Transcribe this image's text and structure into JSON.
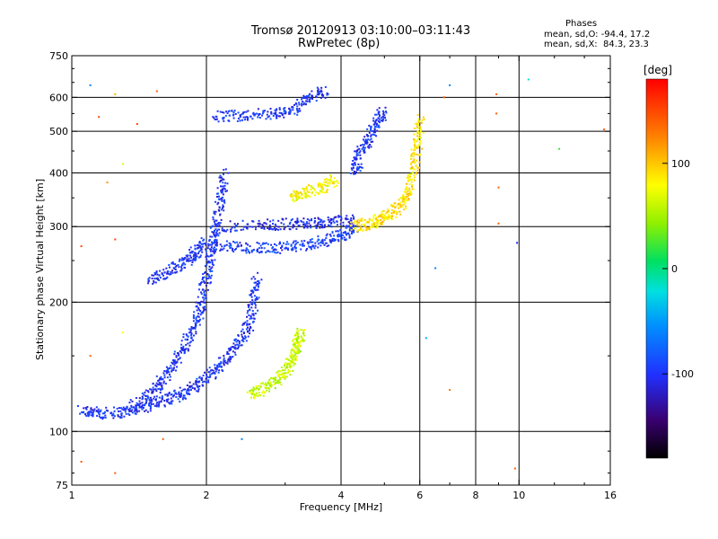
{
  "header": {
    "title_line1": "Tromsø 20120913 03:10:00–03:11:43",
    "title_line2": "RwPretec (8p)",
    "phases_title": "Phases",
    "phases_line1": "mean, sd,O: -94.4, 17.2",
    "phases_line2": "mean, sd,X:  84.3, 23.3"
  },
  "chart_data": {
    "type": "scatter",
    "xlabel": "Frequency [MHz]",
    "ylabel": "Stationary phase Virtual Height [km]",
    "x_scale": "log",
    "y_scale": "log",
    "xlim": [
      1,
      16
    ],
    "ylim": [
      75,
      750
    ],
    "x_ticks": [
      1,
      2,
      4,
      6,
      8,
      10,
      16
    ],
    "x_tick_labels": [
      "1",
      "2",
      "4",
      "6",
      "8",
      "10",
      "16"
    ],
    "y_ticks": [
      75,
      100,
      200,
      300,
      400,
      500,
      600,
      750
    ],
    "y_tick_labels": [
      "75",
      "100",
      "200",
      "300",
      "400",
      "500",
      "600",
      "750"
    ],
    "x_grid": [
      2,
      4,
      6,
      8,
      10
    ],
    "y_grid": [
      100,
      200,
      300,
      400,
      500,
      600
    ],
    "grid": true,
    "colorbar": {
      "label": "[deg]",
      "min": -180,
      "max": 180,
      "ticks": [
        -100,
        0,
        100
      ],
      "tick_labels": [
        "-100",
        "0",
        "100"
      ]
    },
    "traces": [
      {
        "phase": -100,
        "points": [
          [
            1.05,
            112
          ],
          [
            1.15,
            110
          ],
          [
            1.3,
            111
          ],
          [
            1.45,
            114
          ],
          [
            1.6,
            118
          ],
          [
            1.75,
            122
          ],
          [
            1.9,
            128
          ],
          [
            2.05,
            136
          ],
          [
            2.2,
            146
          ],
          [
            2.35,
            160
          ],
          [
            2.5,
            178
          ],
          [
            2.55,
            200
          ],
          [
            2.6,
            230
          ]
        ]
      },
      {
        "phase": -100,
        "points": [
          [
            1.35,
            114
          ],
          [
            1.5,
            122
          ],
          [
            1.6,
            132
          ],
          [
            1.7,
            145
          ],
          [
            1.8,
            160
          ],
          [
            1.9,
            178
          ],
          [
            1.95,
            200
          ],
          [
            2.0,
            230
          ],
          [
            2.05,
            260
          ],
          [
            2.1,
            300
          ],
          [
            2.15,
            350
          ],
          [
            2.2,
            400
          ]
        ]
      },
      {
        "phase": -95,
        "points": [
          [
            2.05,
            272
          ],
          [
            2.4,
            268
          ],
          [
            2.8,
            267
          ],
          [
            3.2,
            270
          ],
          [
            3.6,
            276
          ],
          [
            4.0,
            286
          ],
          [
            4.3,
            294
          ]
        ]
      },
      {
        "phase": -105,
        "points": [
          [
            2.1,
            300
          ],
          [
            2.6,
            302
          ],
          [
            3.0,
            304
          ],
          [
            3.4,
            306
          ],
          [
            3.8,
            308
          ],
          [
            4.3,
            310
          ]
        ]
      },
      {
        "phase": -100,
        "points": [
          [
            1.5,
            225
          ],
          [
            1.65,
            235
          ],
          [
            1.8,
            250
          ],
          [
            1.9,
            262
          ],
          [
            2.0,
            275
          ]
        ]
      },
      {
        "phase": -100,
        "points": [
          [
            2.1,
            540
          ],
          [
            2.4,
            545
          ],
          [
            2.8,
            550
          ],
          [
            3.1,
            556
          ],
          [
            3.4,
            600
          ],
          [
            3.7,
            620
          ]
        ]
      },
      {
        "phase": -100,
        "points": [
          [
            4.3,
            400
          ],
          [
            4.4,
            440
          ],
          [
            4.6,
            480
          ],
          [
            4.8,
            520
          ],
          [
            5.0,
            560
          ]
        ]
      },
      {
        "phase": 90,
        "points": [
          [
            4.3,
            300
          ],
          [
            4.6,
            305
          ],
          [
            4.9,
            312
          ],
          [
            5.2,
            322
          ],
          [
            5.5,
            340
          ],
          [
            5.7,
            370
          ],
          [
            5.85,
            420
          ],
          [
            5.95,
            480
          ],
          [
            6.0,
            540
          ]
        ]
      },
      {
        "phase": 60,
        "points": [
          [
            2.5,
            122
          ],
          [
            2.7,
            126
          ],
          [
            2.9,
            132
          ],
          [
            3.05,
            140
          ],
          [
            3.15,
            150
          ],
          [
            3.2,
            160
          ],
          [
            3.25,
            172
          ]
        ]
      },
      {
        "phase": 80,
        "points": [
          [
            3.1,
            350
          ],
          [
            3.3,
            360
          ],
          [
            3.6,
            370
          ],
          [
            3.9,
            385
          ]
        ]
      }
    ],
    "scatter_points": [
      {
        "x": 1.1,
        "y": 640,
        "phase": -60
      },
      {
        "x": 1.25,
        "y": 610,
        "phase": 110
      },
      {
        "x": 1.55,
        "y": 620,
        "phase": 140
      },
      {
        "x": 1.15,
        "y": 540,
        "phase": 150
      },
      {
        "x": 1.4,
        "y": 520,
        "phase": 150
      },
      {
        "x": 1.2,
        "y": 380,
        "phase": 120
      },
      {
        "x": 1.3,
        "y": 420,
        "phase": 70
      },
      {
        "x": 1.05,
        "y": 270,
        "phase": 150
      },
      {
        "x": 1.25,
        "y": 280,
        "phase": 150
      },
      {
        "x": 1.1,
        "y": 150,
        "phase": 140
      },
      {
        "x": 1.3,
        "y": 170,
        "phase": 80
      },
      {
        "x": 1.6,
        "y": 96,
        "phase": 140
      },
      {
        "x": 1.25,
        "y": 80,
        "phase": 140
      },
      {
        "x": 1.05,
        "y": 85,
        "phase": 140
      },
      {
        "x": 2.4,
        "y": 96,
        "phase": -60
      },
      {
        "x": 7.0,
        "y": 640,
        "phase": -60
      },
      {
        "x": 6.8,
        "y": 600,
        "phase": 140
      },
      {
        "x": 8.9,
        "y": 610,
        "phase": 140
      },
      {
        "x": 8.9,
        "y": 550,
        "phase": 140
      },
      {
        "x": 10.5,
        "y": 660,
        "phase": -20
      },
      {
        "x": 9.0,
        "y": 370,
        "phase": 140
      },
      {
        "x": 9.0,
        "y": 305,
        "phase": 140
      },
      {
        "x": 6.5,
        "y": 240,
        "phase": -60
      },
      {
        "x": 7.0,
        "y": 125,
        "phase": 130
      },
      {
        "x": 9.8,
        "y": 82,
        "phase": 140
      },
      {
        "x": 12.3,
        "y": 455,
        "phase": 20
      },
      {
        "x": 15.5,
        "y": 505,
        "phase": 140
      },
      {
        "x": 6.2,
        "y": 165,
        "phase": -40
      },
      {
        "x": 9.9,
        "y": 275,
        "phase": -100
      }
    ]
  }
}
